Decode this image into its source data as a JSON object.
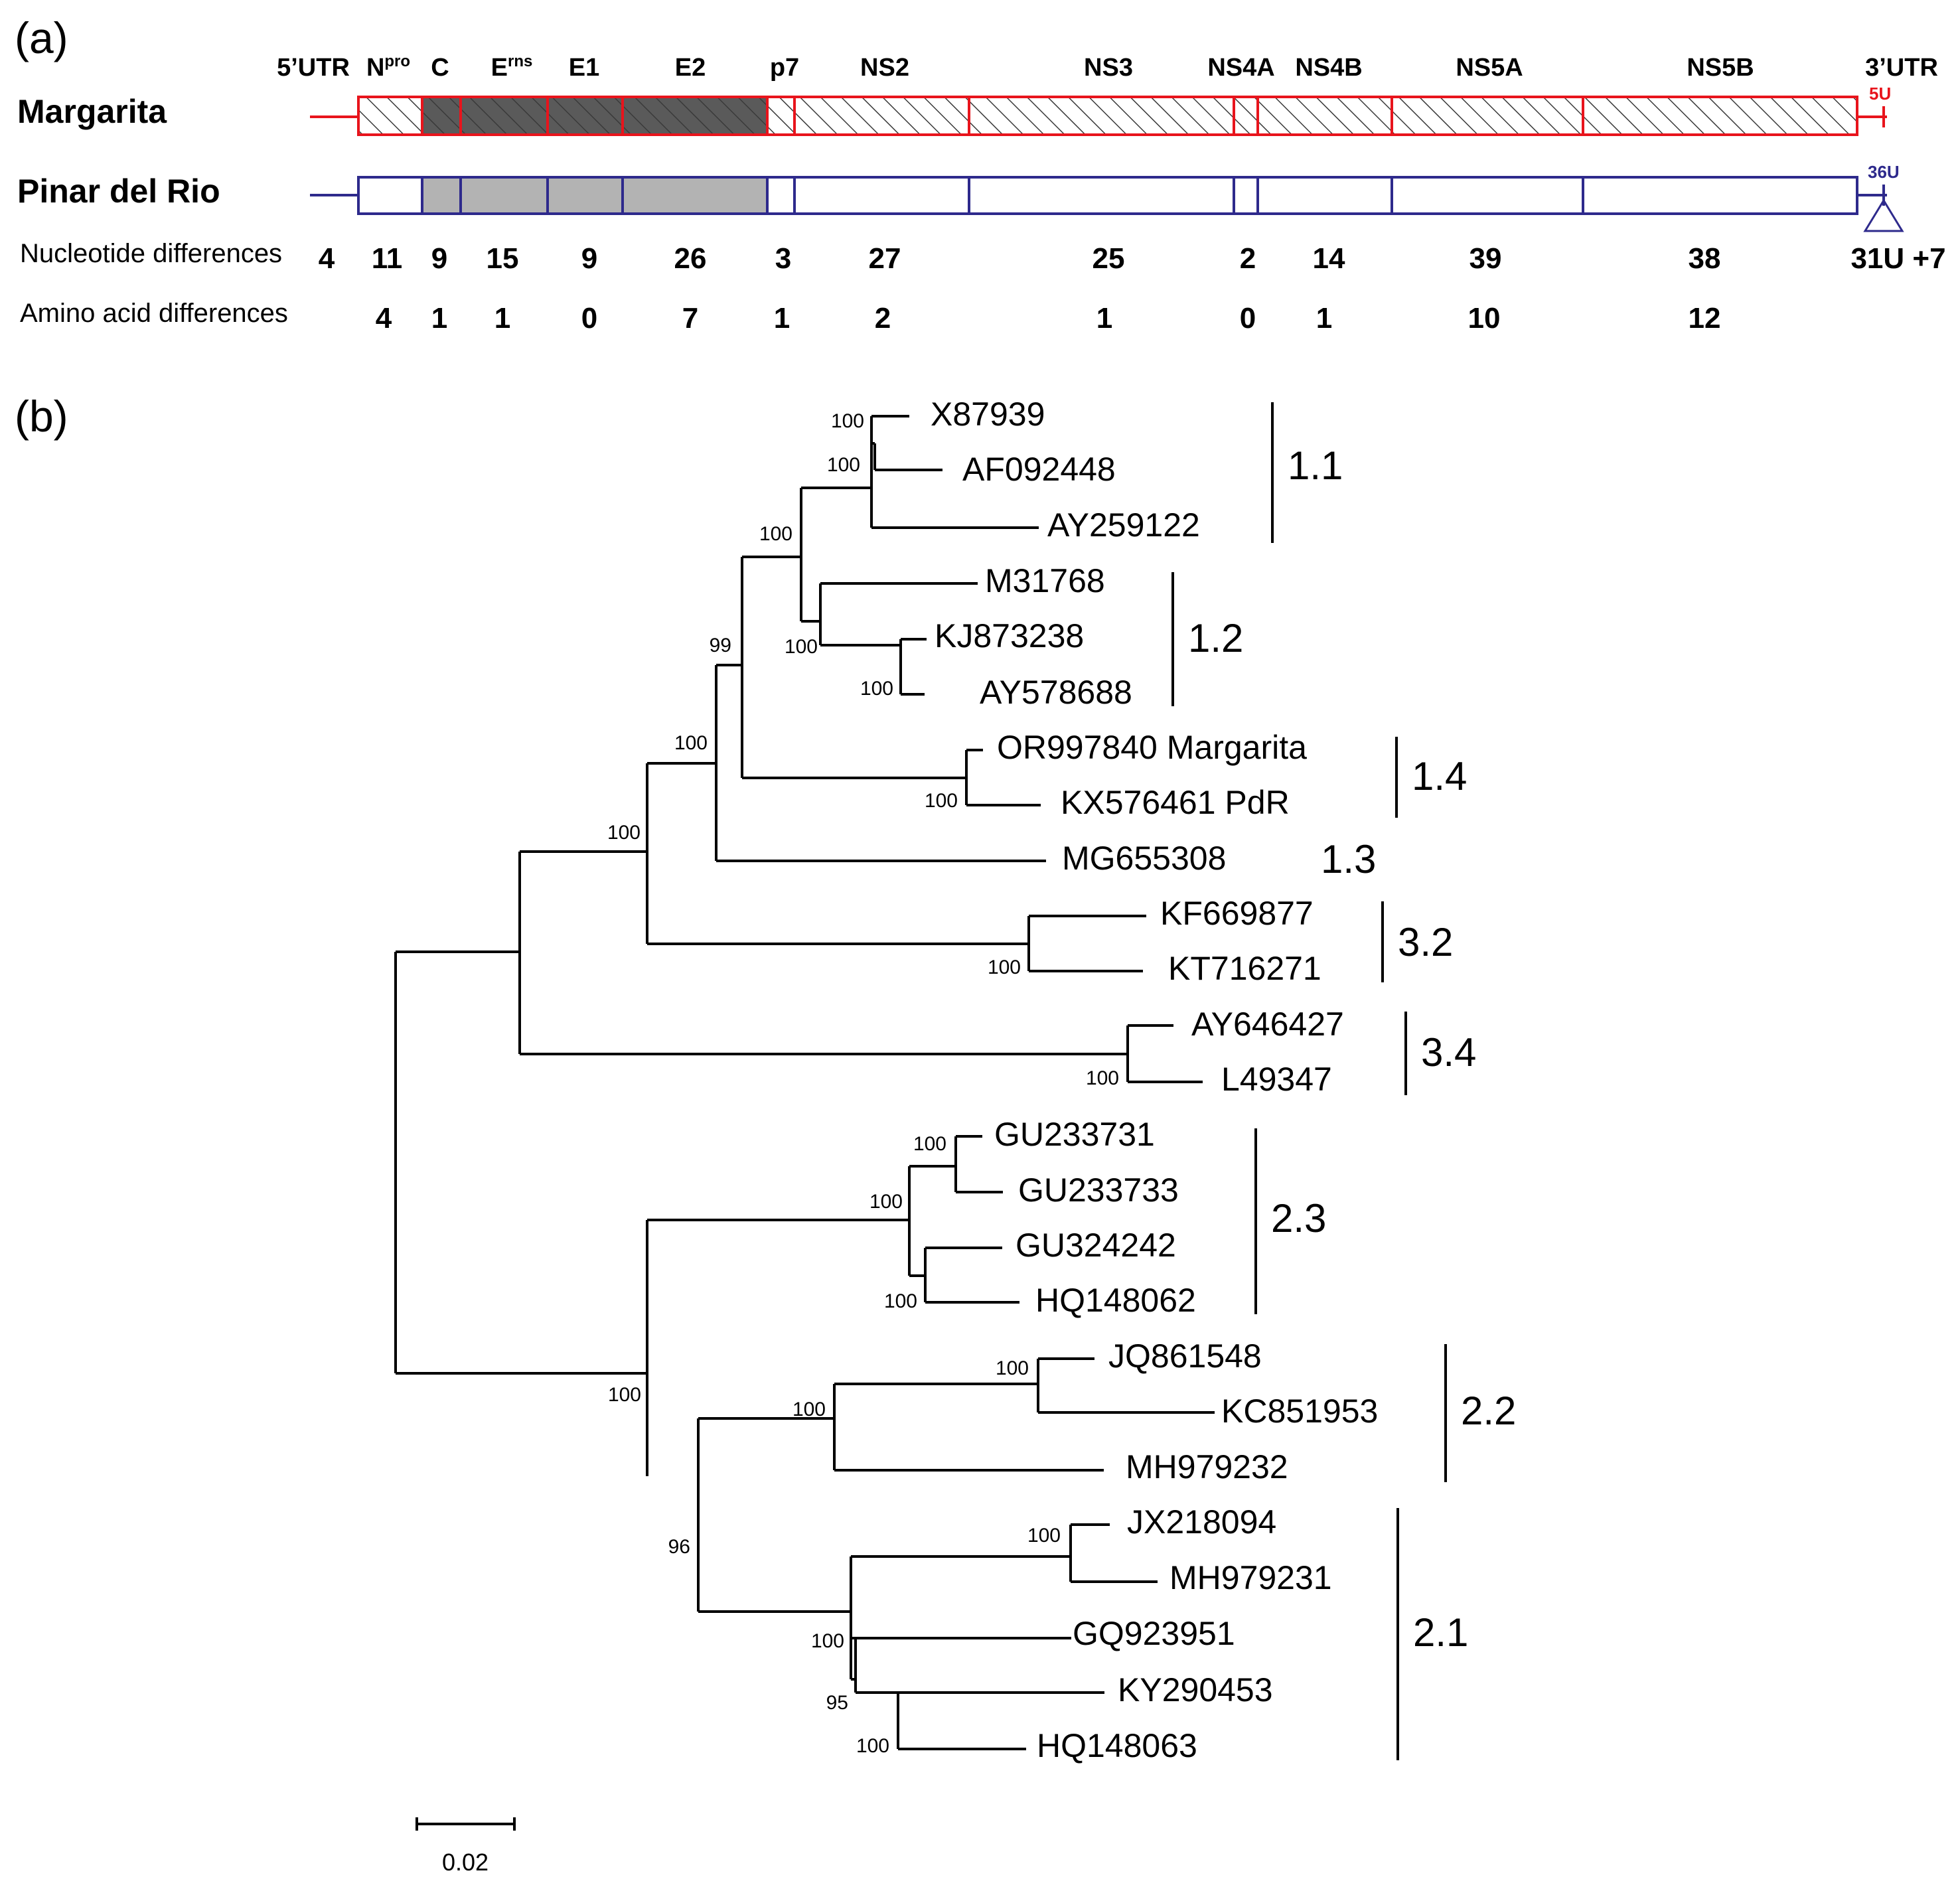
{
  "colors": {
    "margarita": "#e8141c",
    "pinar": "#2e2a8c",
    "dark_fill": "#5a5a5a",
    "light_fill": "#b3b3b3",
    "ink": "#000000"
  },
  "panel_a_label": "(a)",
  "panel_b_label": "(b)",
  "genome": {
    "strain1": "Margarita",
    "strain2": "Pinar del Rio",
    "region_labels": [
      "5’UTR",
      "N",
      "C",
      "E",
      "E1",
      "E2",
      "p7",
      "NS2",
      "NS3",
      "NS4A",
      "NS4B",
      "NS5A",
      "NS5B",
      "3’UTR"
    ],
    "npro_sup": "pro",
    "erns_sup": "rns",
    "margarita_utr3": "5U",
    "pinar_utr3": "36U",
    "row1_label": "Nucleotide differences",
    "row2_label": "Amino acid differences",
    "nucleotide_differences": [
      "4",
      "11",
      "9",
      "15",
      "9",
      "26",
      "3",
      "27",
      "25",
      "2",
      "14",
      "39",
      "38",
      "31U +7"
    ],
    "amino_acid_differences": [
      "4",
      "1",
      "1",
      "0",
      "7",
      "1",
      "2",
      "1",
      "0",
      "1",
      "10",
      "12"
    ]
  },
  "tree": {
    "taxa": [
      "X87939",
      "AF092448",
      "AY259122",
      "M31768",
      "KJ873238",
      "AY578688",
      "OR997840 Margarita",
      "KX576461 PdR",
      "MG655308",
      "KF669877",
      "KT716271",
      "AY646427",
      "L49347",
      "GU233731",
      "GU233733",
      "GU324242",
      "HQ148062",
      "JQ861548",
      "KC851953",
      "MH979232",
      "JX218094",
      "MH979231",
      "GQ923951",
      "KY290453",
      "HQ148063"
    ],
    "bootstrap": [
      "100",
      "100",
      "100",
      "99",
      "100",
      "100",
      "100",
      "100",
      "100",
      "100",
      "100",
      "100",
      "100",
      "100",
      "100",
      "100",
      "96",
      "100",
      "100",
      "95",
      "100"
    ],
    "clades": [
      "1.1",
      "1.2",
      "1.4",
      "1.3",
      "3.2",
      "3.4",
      "2.3",
      "2.2",
      "2.1"
    ],
    "scale_label": "0.02"
  }
}
